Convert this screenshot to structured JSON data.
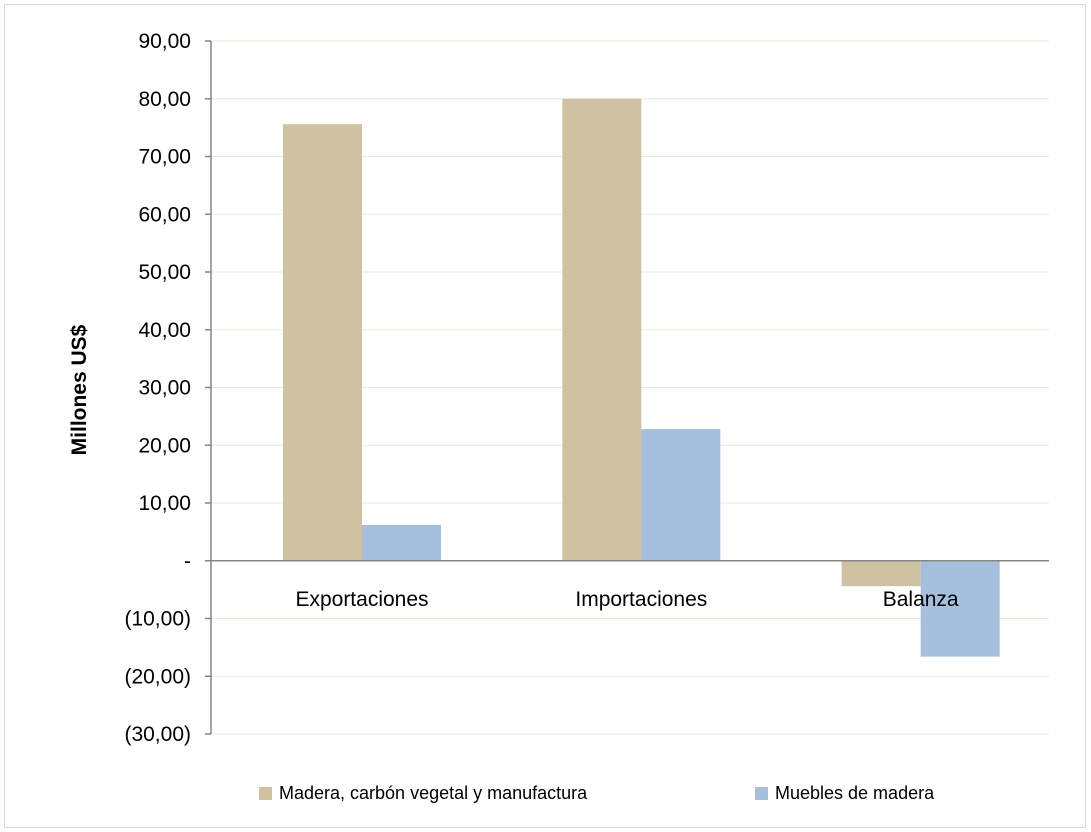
{
  "chart_data": {
    "type": "bar",
    "title": "",
    "xlabel": "",
    "ylabel": "Millones US$",
    "ylim": [
      -30,
      90
    ],
    "y_ticks": [
      90,
      80,
      70,
      60,
      50,
      40,
      30,
      20,
      10,
      0,
      -10,
      -20,
      -30
    ],
    "y_tick_labels": [
      "90,00",
      "80,00",
      "70,00",
      "60,00",
      "50,00",
      "40,00",
      "30,00",
      "20,00",
      "10,00",
      "-",
      "(10,00)",
      "(20,00)",
      "(30,00)"
    ],
    "categories": [
      "Exportaciones",
      "Importaciones",
      "Balanza"
    ],
    "series": [
      {
        "name": "Madera, carbón vegetal y manufactura",
        "color": "#cfc2a2",
        "values": [
          75.6,
          80.0,
          -4.4
        ]
      },
      {
        "name": "Muebles de madera",
        "color": "#a5bfdd",
        "values": [
          6.2,
          22.8,
          -16.6
        ]
      }
    ],
    "grid": true,
    "gridline_color": "#ebebd9",
    "legend_position": "bottom"
  }
}
